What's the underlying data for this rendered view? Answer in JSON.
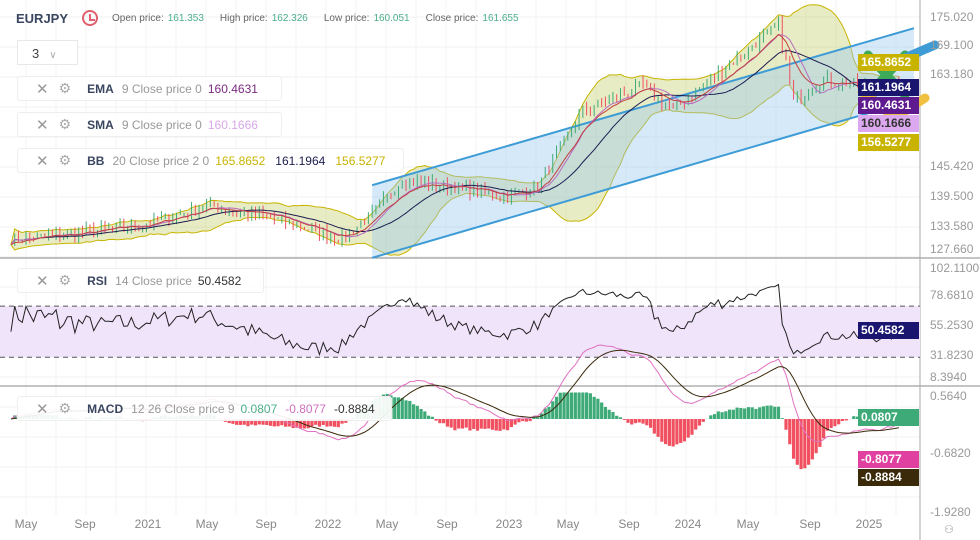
{
  "header": {
    "symbol": "EURJPY",
    "open_label": "Open price:",
    "open": "161.353",
    "high_label": "High price:",
    "high": "162.326",
    "low_label": "Low price:",
    "low": "160.051",
    "close_label": "Close price:",
    "close": "161.655"
  },
  "interval_dropdown": {
    "value": "3"
  },
  "indicators": {
    "ema": {
      "name": "EMA",
      "params": "9 Close price 0",
      "value": "160.4631"
    },
    "sma": {
      "name": "SMA",
      "params": "9 Close price 0",
      "value": "160.1666"
    },
    "bb": {
      "name": "BB",
      "params": "20 Close price 2 0",
      "upper": "165.8652",
      "middle": "161.1964",
      "lower": "156.5277"
    },
    "rsi": {
      "name": "RSI",
      "params": "14 Close price",
      "value": "50.4582"
    },
    "macd": {
      "name": "MACD",
      "params": "12 26 Close price 9",
      "hist": "0.0807",
      "macd": "-0.8077",
      "signal": "-0.8884"
    }
  },
  "price_axis": [
    "175.020",
    "169.100",
    "163.180",
    "145.420",
    "139.500",
    "133.580",
    "127.660"
  ],
  "rsi_axis": [
    "102.1100",
    "78.6810",
    "55.2530",
    "31.8230",
    "8.3940"
  ],
  "macd_axis": [
    "0.5640",
    "-0.6820",
    "-1.9280"
  ],
  "x_axis": [
    "May",
    "Sep",
    "2021",
    "May",
    "Sep",
    "2022",
    "May",
    "Sep",
    "2023",
    "May",
    "Sep",
    "2024",
    "May",
    "Sep",
    "2025"
  ],
  "colors": {
    "up": "#3daa78",
    "down": "#f0505f",
    "ema": "#1c1c50",
    "sma": "#b86cc0",
    "bb": "#c8b400",
    "channel": "#3d9bd6",
    "rsi_band": "#f0e4fb"
  },
  "chart_data": {
    "type": "candlestick",
    "close_path": [
      [
        "2020-04",
        131
      ],
      [
        "2020-08",
        132
      ],
      [
        "2021-01",
        134
      ],
      [
        "2021-05",
        137.7
      ],
      [
        "2021-09",
        135.5
      ],
      [
        "2022-02",
        131
      ],
      [
        "2022-04",
        136
      ],
      [
        "2022-06",
        142.7
      ],
      [
        "2022-09",
        141.5
      ],
      [
        "2023-01",
        139.5
      ],
      [
        "2023-03",
        141.5
      ],
      [
        "2023-06",
        156.5
      ],
      [
        "2023-10",
        161.5
      ],
      [
        "2023-12",
        156.5
      ],
      [
        "2024-07",
        173.5
      ],
      [
        "2024-08",
        158.5
      ],
      [
        "2024-10",
        162.5
      ],
      [
        "2025-01",
        161.5
      ],
      [
        "2025-03",
        161.655
      ]
    ],
    "trend_channel": {
      "start": "2022-04",
      "end": "2025-04",
      "upper": [
        141.7,
        172.8
      ],
      "lower": [
        127.3,
        158.6
      ]
    },
    "ylim": [
      127.66,
      175.02
    ],
    "rsi_levels": [
      30,
      70
    ]
  }
}
